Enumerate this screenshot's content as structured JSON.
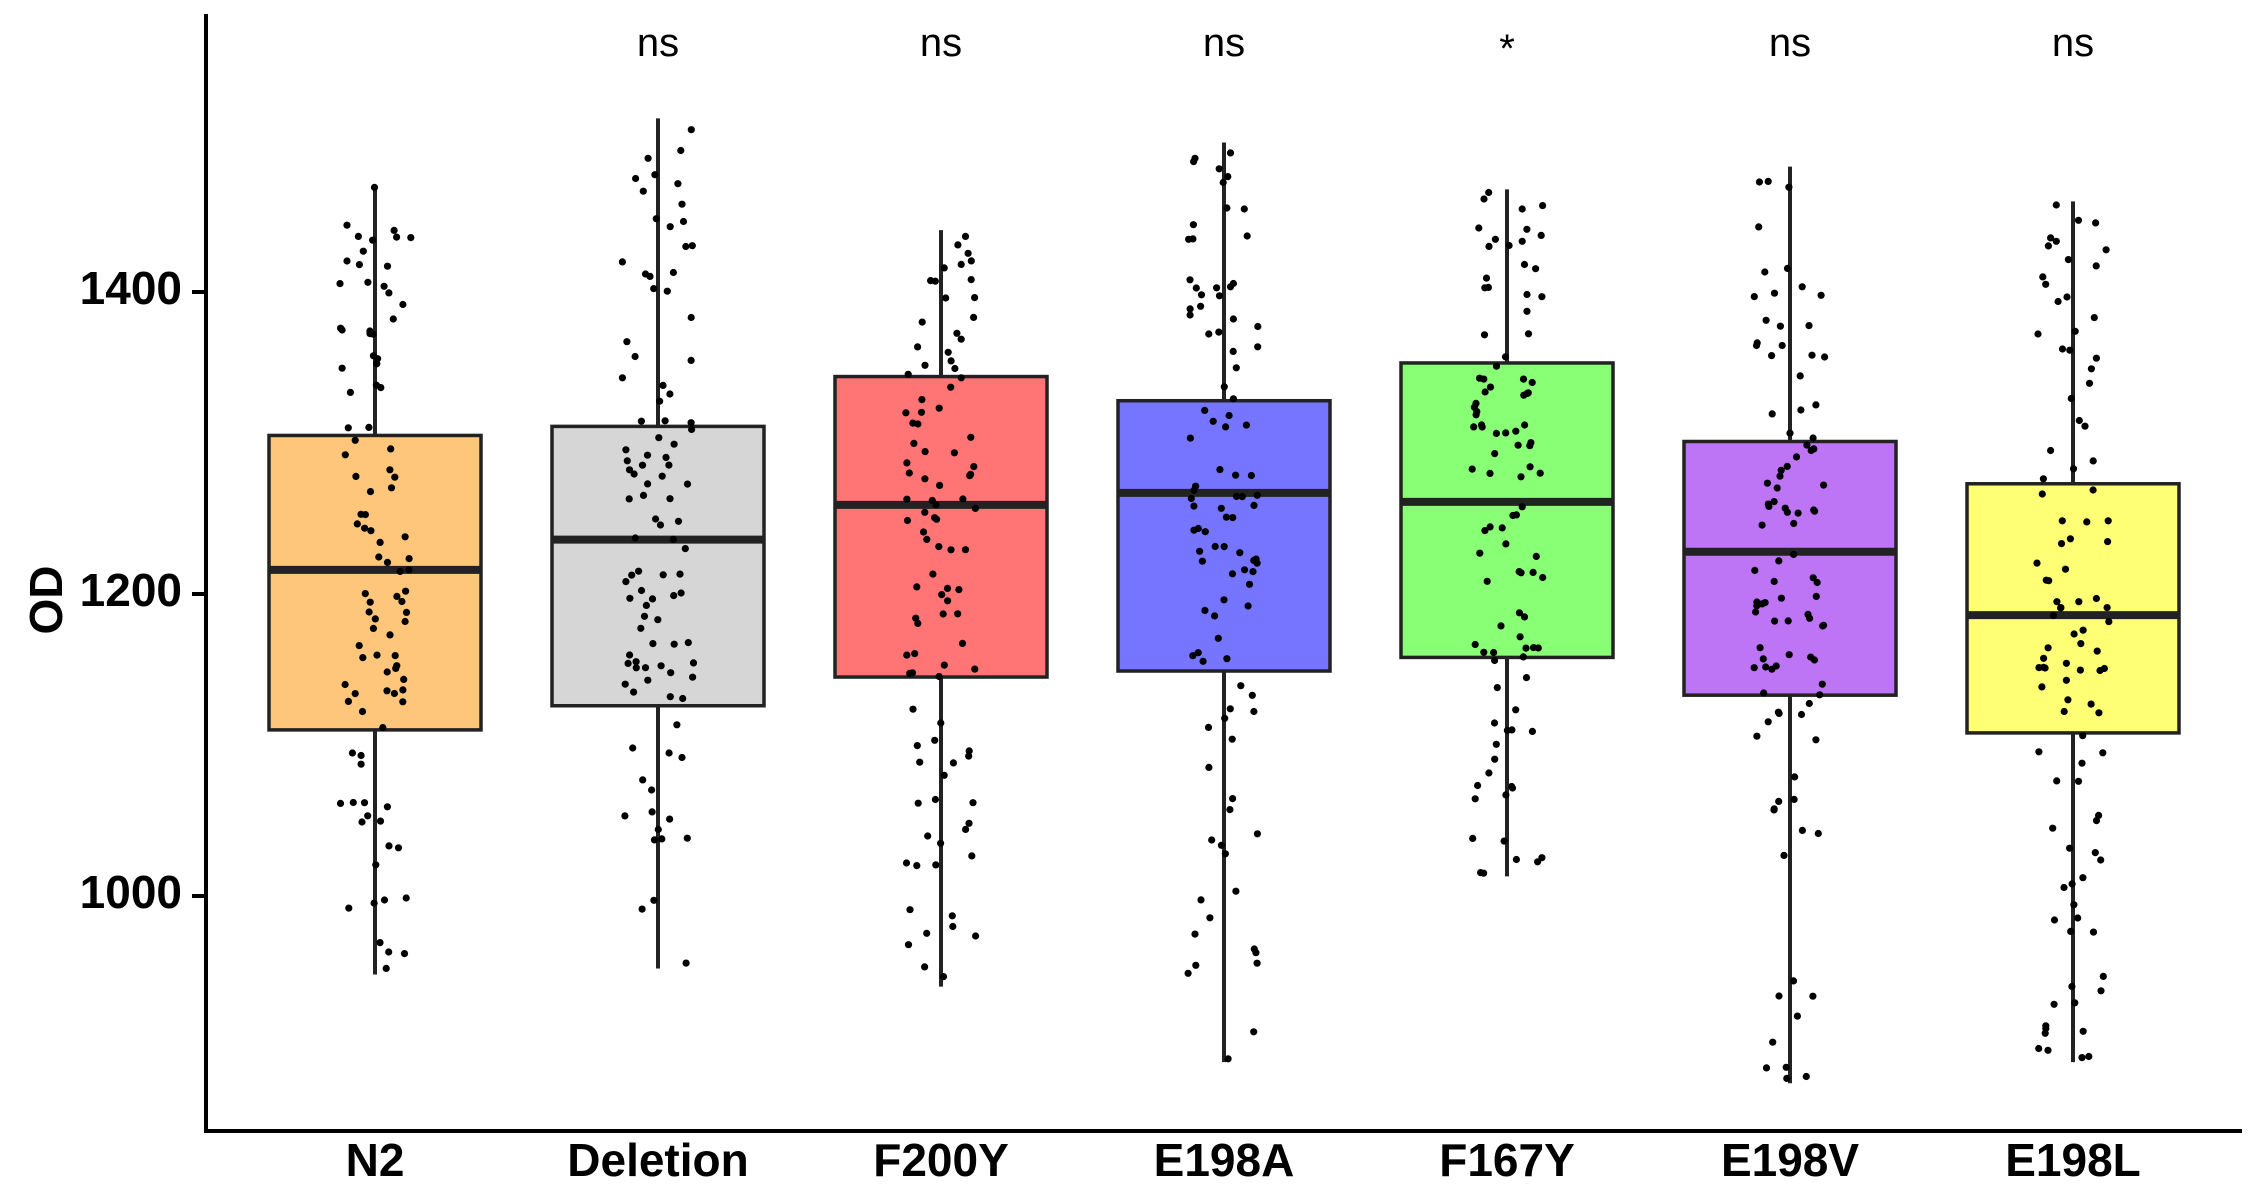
{
  "chart_data": {
    "type": "boxplot",
    "title": "",
    "xlabel": "",
    "ylabel": "OD",
    "ylim": [
      840,
      1590
    ],
    "yticks": [
      1000,
      1200,
      1400
    ],
    "ytick_labels": [
      "1000",
      "1200",
      "1400"
    ],
    "grid": false,
    "legend": "none",
    "categories": [
      "N2",
      "Deletion",
      "F200Y",
      "E198A",
      "F167Y",
      "E198V",
      "E198L"
    ],
    "colors": [
      "#FDC67A",
      "#D6D6D6",
      "#FF7575",
      "#7575FF",
      "#88FF75",
      "#BE75F5",
      "#FFFF75"
    ],
    "significance": [
      "",
      "ns",
      "ns",
      "ns",
      "*",
      "ns",
      "ns"
    ],
    "boxes": [
      {
        "name": "N2",
        "whisker_low": 948,
        "q1": 1110,
        "median": 1216,
        "q3": 1305,
        "whisker_high": 1470
      },
      {
        "name": "Deletion",
        "whisker_low": 952,
        "q1": 1126,
        "median": 1236,
        "q3": 1311,
        "whisker_high": 1515
      },
      {
        "name": "F200Y",
        "whisker_low": 940,
        "q1": 1145,
        "median": 1259,
        "q3": 1344,
        "whisker_high": 1441
      },
      {
        "name": "E198A",
        "whisker_low": 890,
        "q1": 1149,
        "median": 1267,
        "q3": 1328,
        "whisker_high": 1499
      },
      {
        "name": "F167Y",
        "whisker_low": 1013,
        "q1": 1158,
        "median": 1261,
        "q3": 1353,
        "whisker_high": 1468
      },
      {
        "name": "E198V",
        "whisker_low": 876,
        "q1": 1133,
        "median": 1228,
        "q3": 1301,
        "whisker_high": 1483
      },
      {
        "name": "E198L",
        "whisker_low": 890,
        "q1": 1108,
        "median": 1186,
        "q3": 1273,
        "whisker_high": 1460
      }
    ]
  }
}
